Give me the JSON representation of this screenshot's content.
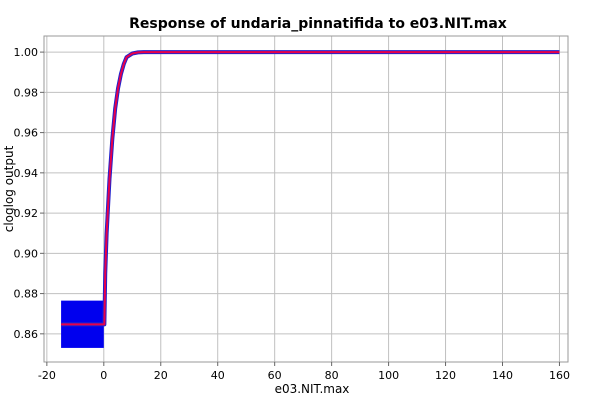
{
  "chart_data": {
    "type": "line",
    "title": "Response of undaria_pinnatifida to e03.NIT.max",
    "xlabel": "e03.NIT.max",
    "ylabel": "cloglog output",
    "xlim": [
      -21,
      163
    ],
    "ylim": [
      0.846,
      1.008
    ],
    "grid": true,
    "x_ticks": [
      -20,
      0,
      20,
      40,
      60,
      80,
      100,
      120,
      140,
      160
    ],
    "y_ticks": [
      0.86,
      0.88,
      0.9,
      0.92,
      0.94,
      0.96,
      0.98,
      1.0
    ],
    "x_tick_labels": [
      "-20",
      "0",
      "20",
      "40",
      "60",
      "80",
      "100",
      "120",
      "140",
      "160"
    ],
    "y_tick_labels": [
      "0.86",
      "0.88",
      "0.90",
      "0.92",
      "0.94",
      "0.96",
      "0.98",
      "1.00"
    ],
    "series": [
      {
        "color": "#e8004a",
        "values": [
          {
            "x": -15,
            "y": 0.8647
          },
          {
            "x": 0.2,
            "y": 0.8647
          },
          {
            "x": 0.5,
            "y": 0.89
          },
          {
            "x": 1,
            "y": 0.91
          },
          {
            "x": 2,
            "y": 0.937
          },
          {
            "x": 3,
            "y": 0.957
          },
          {
            "x": 4,
            "y": 0.972
          },
          {
            "x": 5,
            "y": 0.982
          },
          {
            "x": 6,
            "y": 0.989
          },
          {
            "x": 7,
            "y": 0.994
          },
          {
            "x": 8,
            "y": 0.9975
          },
          {
            "x": 10,
            "y": 0.9993
          },
          {
            "x": 12,
            "y": 0.99985
          },
          {
            "x": 14,
            "y": 1.0
          },
          {
            "x": 160,
            "y": 1.0
          }
        ]
      }
    ],
    "box": {
      "x_min": -15,
      "x_max": 0,
      "y_min": 0.853,
      "y_max": 0.8765,
      "color": "#0000ee"
    },
    "band_color": "#2222cc"
  }
}
